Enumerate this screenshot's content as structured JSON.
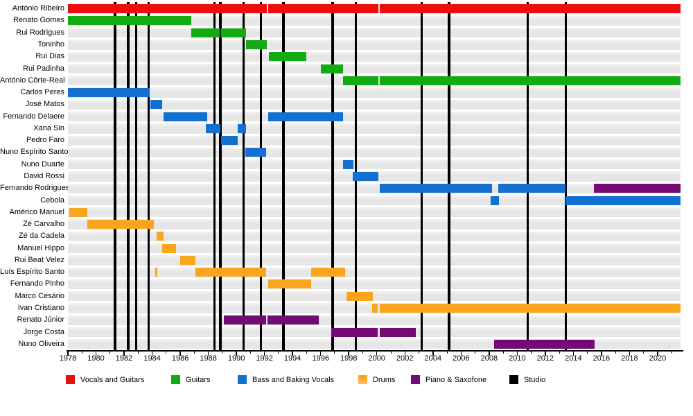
{
  "colors": {
    "vocals_guitars": "#ee0c0c",
    "guitars": "#12ab12",
    "bass": "#1170d0",
    "drums": "#fba51f",
    "piano_sax": "#740b74",
    "studio": "#000000"
  },
  "legend": {
    "items": [
      {
        "role": "vocals_guitars",
        "label": "Vocals and Guitars"
      },
      {
        "role": "guitars",
        "label": "Guitars"
      },
      {
        "role": "bass",
        "label": "Bass and Baking Vocals"
      },
      {
        "role": "drums",
        "label": "Drums"
      },
      {
        "role": "piano_sax",
        "label": "Piano & Saxofone"
      },
      {
        "role": "studio",
        "label": "Studio"
      }
    ]
  },
  "chart_data": {
    "type": "timeline",
    "title": "",
    "x_axis": {
      "start": 1978,
      "end": 2021.63,
      "major_ticks": [
        1978,
        1980,
        1982,
        1984,
        1986,
        1988,
        1990,
        1992,
        1994,
        1996,
        1998,
        2000,
        2002,
        2004,
        2006,
        2008,
        2010,
        2012,
        2014,
        2016,
        2018,
        2020
      ],
      "minor_tick_interval": 1
    },
    "studio_album_lines": [
      1981.35,
      1982.3,
      1982.85,
      1983.75,
      1988.45,
      1988.85,
      1990.5,
      1991.75,
      1993.35,
      1996.85,
      1998.5,
      2003.2,
      2005.15,
      2010.75,
      2013.45
    ],
    "members": [
      {
        "name": "António Ribeiro",
        "segments": [
          {
            "role": "vocals_guitars",
            "start": 1978,
            "end": 1992.15
          },
          {
            "role": "vocals_guitars",
            "start": 1992.25,
            "end": 2000.1
          },
          {
            "role": "vocals_guitars",
            "start": 2000.2,
            "end": 2021.63
          }
        ]
      },
      {
        "name": "Renato Gomes",
        "segments": [
          {
            "role": "guitars",
            "start": 1978,
            "end": 1986.8
          }
        ]
      },
      {
        "name": "Rui Rodrigues",
        "segments": [
          {
            "role": "guitars",
            "start": 1986.8,
            "end": 1988.8
          },
          {
            "role": "guitars",
            "start": 1988.9,
            "end": 1990.7
          }
        ]
      },
      {
        "name": "Toninho",
        "segments": [
          {
            "role": "guitars",
            "start": 1990.7,
            "end": 1992.15
          }
        ]
      },
      {
        "name": "Rui Dias",
        "segments": [
          {
            "role": "guitars",
            "start": 1992.3,
            "end": 1995.0
          }
        ]
      },
      {
        "name": "Rui Padinha",
        "segments": [
          {
            "role": "guitars",
            "start": 1996.0,
            "end": 1997.6
          }
        ]
      },
      {
        "name": "António Côrte-Real",
        "segments": [
          {
            "role": "guitars",
            "start": 1997.6,
            "end": 2000.1
          },
          {
            "role": "guitars",
            "start": 2000.2,
            "end": 2021.63
          }
        ]
      },
      {
        "name": "Carlos Peres",
        "segments": [
          {
            "role": "bass",
            "start": 1978,
            "end": 1983.8
          }
        ]
      },
      {
        "name": "José Matos",
        "segments": [
          {
            "role": "bass",
            "start": 1983.85,
            "end": 1984.7
          }
        ]
      },
      {
        "name": "Fernando Delaere",
        "segments": [
          {
            "role": "bass",
            "start": 1984.8,
            "end": 1987.9
          },
          {
            "role": "bass",
            "start": 1992.25,
            "end": 1997.6
          }
        ]
      },
      {
        "name": "Xana Sin",
        "segments": [
          {
            "role": "bass",
            "start": 1987.8,
            "end": 1988.85
          },
          {
            "role": "bass",
            "start": 1990.1,
            "end": 1990.7
          }
        ]
      },
      {
        "name": "Pedro Faro",
        "segments": [
          {
            "role": "bass",
            "start": 1988.9,
            "end": 1990.1
          }
        ]
      },
      {
        "name": "Nuno Espírito Santo",
        "segments": [
          {
            "role": "bass",
            "start": 1990.65,
            "end": 1992.1
          }
        ]
      },
      {
        "name": "Nuno Duarte",
        "segments": [
          {
            "role": "bass",
            "start": 1997.6,
            "end": 1998.35
          }
        ]
      },
      {
        "name": "David Rossi",
        "segments": [
          {
            "role": "bass",
            "start": 1998.3,
            "end": 2000.1
          }
        ]
      },
      {
        "name": "Fernando Rodrigues",
        "segments": [
          {
            "role": "bass",
            "start": 2000.2,
            "end": 2008.2
          },
          {
            "role": "bass",
            "start": 2008.65,
            "end": 2013.45
          },
          {
            "role": "piano_sax",
            "start": 2015.45,
            "end": 2021.63
          }
        ]
      },
      {
        "name": "Cebola",
        "segments": [
          {
            "role": "bass",
            "start": 2008.1,
            "end": 2008.7
          },
          {
            "role": "bass",
            "start": 2013.45,
            "end": 2021.63
          }
        ]
      },
      {
        "name": "Américo Manuel",
        "segments": [
          {
            "role": "drums",
            "start": 1978.1,
            "end": 1979.4
          }
        ]
      },
      {
        "name": "Zé Carvalho",
        "segments": [
          {
            "role": "drums",
            "start": 1979.4,
            "end": 1984.1
          }
        ]
      },
      {
        "name": "Zé da Cadela",
        "segments": [
          {
            "role": "drums",
            "start": 1984.3,
            "end": 1984.8
          }
        ]
      },
      {
        "name": "Manuel Hippo",
        "segments": [
          {
            "role": "drums",
            "start": 1984.7,
            "end": 1985.7
          }
        ]
      },
      {
        "name": "Rui Beat Velez",
        "segments": [
          {
            "role": "drums",
            "start": 1986.0,
            "end": 1987.1
          }
        ]
      },
      {
        "name": "Luís Espírito Santo",
        "segments": [
          {
            "role": "drums",
            "start": 1984.2,
            "end": 1984.35
          },
          {
            "role": "drums",
            "start": 1987.1,
            "end": 1992.1
          },
          {
            "role": "drums",
            "start": 1995.3,
            "end": 1997.75
          }
        ]
      },
      {
        "name": "Fernando Pinho",
        "segments": [
          {
            "role": "drums",
            "start": 1992.25,
            "end": 1995.3
          }
        ]
      },
      {
        "name": "Marco Cesário",
        "segments": [
          {
            "role": "drums",
            "start": 1997.85,
            "end": 1999.7
          }
        ]
      },
      {
        "name": "Ivan Cristiano",
        "segments": [
          {
            "role": "drums",
            "start": 1999.65,
            "end": 2000.05
          },
          {
            "role": "drums",
            "start": 2000.2,
            "end": 2021.63
          }
        ]
      },
      {
        "name": "Renato Júnior",
        "segments": [
          {
            "role": "piano_sax",
            "start": 1989.1,
            "end": 1992.1
          },
          {
            "role": "piano_sax",
            "start": 1992.2,
            "end": 1995.85
          }
        ]
      },
      {
        "name": "Jorge Costa",
        "segments": [
          {
            "role": "piano_sax",
            "start": 1996.75,
            "end": 2000.05
          },
          {
            "role": "piano_sax",
            "start": 2000.2,
            "end": 2002.8
          }
        ]
      },
      {
        "name": "Nuno Oliveira",
        "segments": [
          {
            "role": "piano_sax",
            "start": 2008.35,
            "end": 2015.5
          }
        ]
      }
    ]
  }
}
